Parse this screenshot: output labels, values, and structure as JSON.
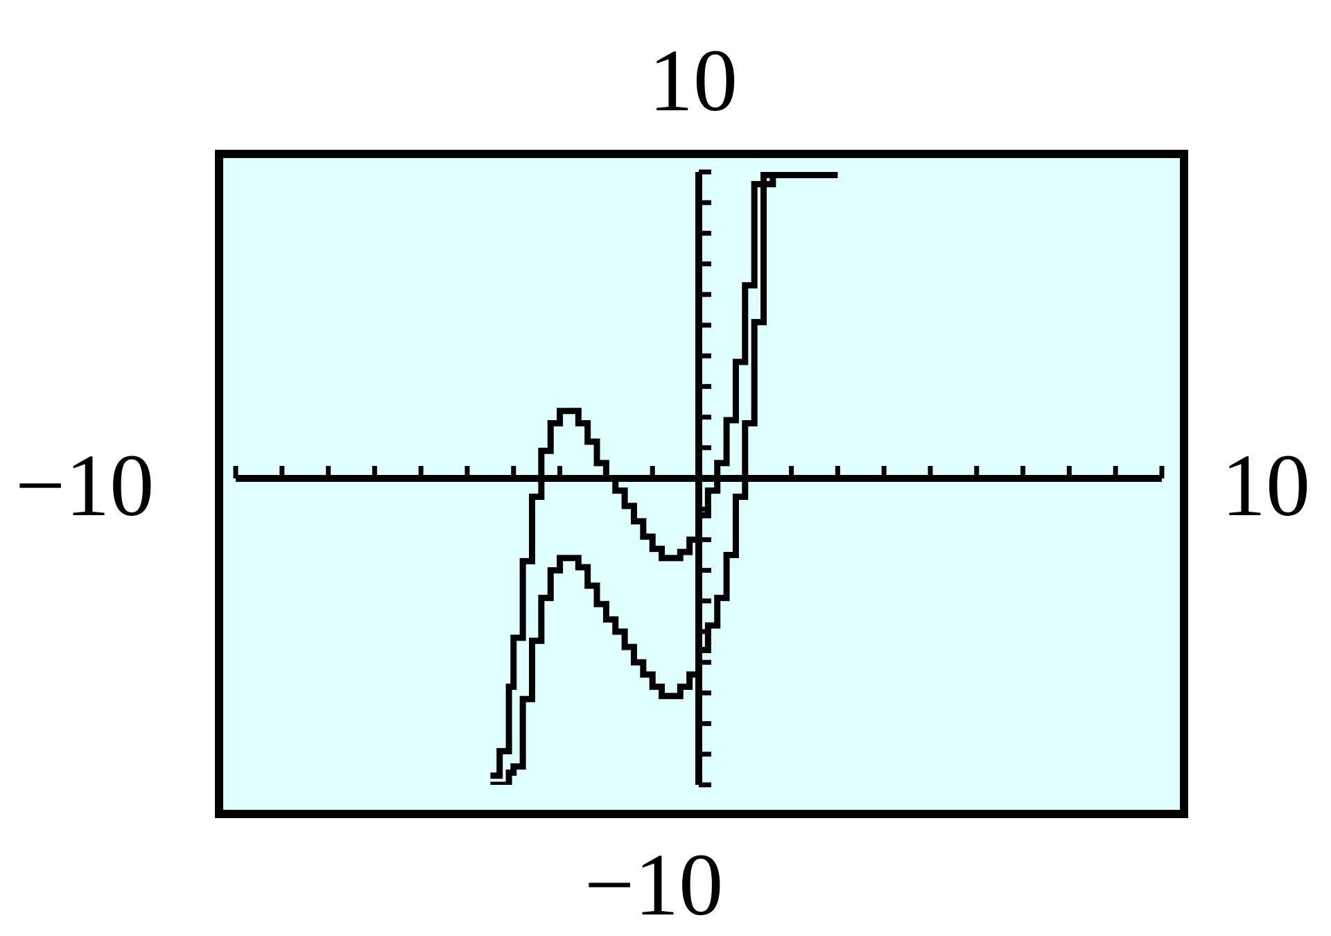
{
  "window": {
    "ymax_label": "10",
    "ymin_label": "−10",
    "xmin_label": "−10",
    "xmax_label": "10"
  },
  "colors": {
    "screen_background": "#e0ffff",
    "ink": "#000000",
    "page_background": "#ffffff"
  },
  "chart_data": {
    "type": "line",
    "title": "",
    "xlabel": "",
    "ylabel": "",
    "xlim": [
      -10,
      10
    ],
    "ylim": [
      -10,
      10
    ],
    "xticks_step": 1,
    "yticks_step": 1,
    "grid": false,
    "legend": "none",
    "series": [
      {
        "x": [
          -4.5,
          -4.3,
          -4.1,
          -4.0,
          -3.8,
          -3.6,
          -3.4,
          -3.2,
          -3.0,
          -2.8,
          -2.6,
          -2.4,
          -2.2,
          -2.0,
          -1.8,
          -1.6,
          -1.4,
          -1.2,
          -1.0,
          -0.8,
          -0.6,
          -0.4,
          -0.2,
          0.0,
          0.2,
          0.4,
          0.6,
          0.8,
          1.0,
          1.2,
          1.4,
          1.6,
          1.8,
          2.0,
          2.2,
          2.4,
          2.6,
          2.8,
          3.0
        ],
        "y": [
          -9.7,
          -8.9,
          -6.8,
          -5.2,
          -2.7,
          -0.6,
          0.9,
          1.8,
          2.2,
          2.2,
          1.8,
          1.2,
          0.5,
          0.0,
          -0.4,
          -0.9,
          -1.4,
          -1.9,
          -2.3,
          -2.6,
          -2.6,
          -2.4,
          -2.0,
          -1.2,
          -0.4,
          0.5,
          1.9,
          3.8,
          6.3,
          9.6,
          9.9,
          9.9,
          9.9,
          9.9,
          9.9,
          9.9,
          9.9,
          9.9,
          9.9
        ]
      },
      {
        "x": [
          -4.5,
          -4.3,
          -4.1,
          -4.0,
          -3.8,
          -3.6,
          -3.4,
          -3.2,
          -3.0,
          -2.8,
          -2.6,
          -2.4,
          -2.2,
          -2.0,
          -1.8,
          -1.6,
          -1.4,
          -1.2,
          -1.0,
          -0.8,
          -0.6,
          -0.4,
          -0.2,
          0.0,
          0.2,
          0.4,
          0.6,
          0.8,
          1.0,
          1.2,
          1.4,
          1.6,
          1.8,
          2.0,
          2.2,
          2.4,
          2.6,
          2.8,
          3.0
        ],
        "y": [
          -10.0,
          -10.0,
          -9.6,
          -9.4,
          -7.2,
          -5.3,
          -3.9,
          -3.0,
          -2.6,
          -2.6,
          -2.9,
          -3.5,
          -4.1,
          -4.6,
          -5.0,
          -5.5,
          -6.0,
          -6.4,
          -6.8,
          -7.1,
          -7.1,
          -6.8,
          -6.4,
          -5.6,
          -4.8,
          -3.9,
          -2.5,
          -0.6,
          1.8,
          5.1,
          9.6,
          9.9,
          9.9,
          9.9,
          9.9,
          9.9,
          9.9,
          9.9,
          9.9
        ]
      }
    ]
  }
}
